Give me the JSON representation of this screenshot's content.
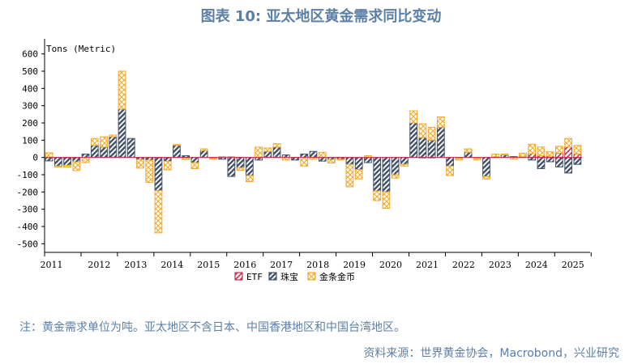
{
  "title": "图表 10: 亚太地区黄金需求同比变动",
  "note": "注：黄金需求单位为吨。亚太地区不含日本、中国香港地区和中国台湾地区。",
  "source": "资料来源：世界黄金协会，Macrobond，兴业研究",
  "chart_data": {
    "type": "bar",
    "stacked": true,
    "unit_label": "Tons (Metric)",
    "ylim": [
      -550,
      650
    ],
    "yticks": [
      600,
      500,
      400,
      300,
      200,
      100,
      0,
      -100,
      -200,
      -300,
      -400,
      -500
    ],
    "x_labels": [
      "2011",
      "2012",
      "2013",
      "2014",
      "2015",
      "2016",
      "2017",
      "2018",
      "2019",
      "2020",
      "2021",
      "2022",
      "2023",
      "2024",
      "2025"
    ],
    "grid": false,
    "legend_position": "bottom",
    "series": [
      {
        "name": "ETF",
        "color": "#c0304a",
        "values": [
          2,
          0,
          -1,
          -1,
          0,
          0,
          0,
          0,
          0,
          0,
          0,
          0,
          -2,
          -2,
          0,
          -2,
          0,
          0,
          0,
          0,
          0,
          1,
          0,
          0,
          0,
          0,
          0,
          0,
          0,
          -1,
          -1,
          0,
          1,
          0,
          0,
          0,
          0,
          0,
          0,
          0,
          0,
          -1,
          -2,
          0,
          0,
          0,
          0,
          0,
          0,
          0,
          0,
          0,
          0,
          22,
          10,
          8,
          25,
          60,
          20
        ]
      },
      {
        "name": "珠宝",
        "color": "#44546a",
        "values": [
          -20,
          -50,
          -45,
          -25,
          20,
          70,
          60,
          120,
          280,
          110,
          -12,
          -15,
          -190,
          -20,
          70,
          10,
          -30,
          40,
          -5,
          -10,
          -110,
          -60,
          -105,
          -15,
          35,
          60,
          15,
          -15,
          20,
          35,
          -20,
          -12,
          -10,
          -40,
          -70,
          -30,
          -195,
          -200,
          -100,
          -40,
          200,
          115,
          100,
          175,
          -50,
          -5,
          30,
          -5,
          -110,
          5,
          15,
          5,
          5,
          -15,
          -65,
          -25,
          -55,
          -90,
          -40,
          -70
        ]
      },
      {
        "name": "金条金币",
        "color": "#f4a92a",
        "values": [
          25,
          -5,
          -10,
          -50,
          -30,
          40,
          60,
          10,
          220,
          0,
          -50,
          -130,
          -245,
          -50,
          5,
          -10,
          -35,
          10,
          -5,
          5,
          5,
          -15,
          -35,
          60,
          20,
          20,
          -15,
          0,
          -50,
          -10,
          30,
          -20,
          -5,
          -130,
          -55,
          10,
          -55,
          -95,
          -20,
          -10,
          70,
          80,
          75,
          60,
          -55,
          -10,
          20,
          -10,
          -15,
          15,
          5,
          -10,
          20,
          55,
          50,
          25,
          40,
          50,
          50,
          50
        ]
      }
    ]
  }
}
